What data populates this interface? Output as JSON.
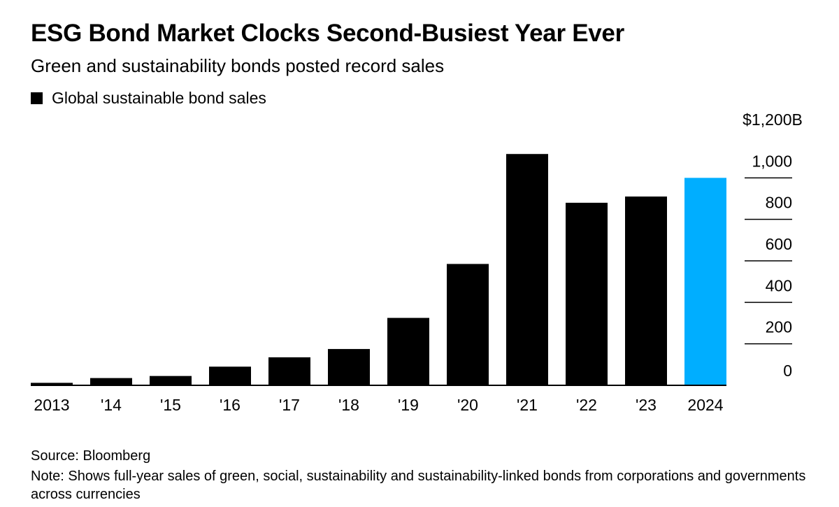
{
  "title": "ESG Bond Market Clocks Second-Busiest Year Ever",
  "subtitle": "Green and sustainability bonds posted record sales",
  "legend": {
    "label": "Global sustainable bond sales",
    "color": "#000000"
  },
  "footer": {
    "source": "Source: Bloomberg",
    "note": "Note: Shows full-year sales of green, social, sustainability and sustainability-linked bonds from corporations and governments across currencies"
  },
  "chart_data": {
    "type": "bar",
    "categories": [
      "2013",
      "'14",
      "'15",
      "'16",
      "'17",
      "'18",
      "'19",
      "'20",
      "'21",
      "'22",
      "'23",
      "2024"
    ],
    "series": [
      {
        "name": "Global sustainable bond sales",
        "values": [
          12,
          35,
          45,
          90,
          135,
          175,
          325,
          585,
          1115,
          880,
          910,
          1000
        ]
      }
    ],
    "highlight_index": 11,
    "bar_color": "#000000",
    "highlight_color": "#00aeff",
    "ylim": [
      0,
      1200
    ],
    "yticks": [
      0,
      200,
      400,
      600,
      800,
      1000,
      1200
    ],
    "ytick_labels": [
      "0",
      "200",
      "400",
      "600",
      "800",
      "1,000",
      "$1,200B"
    ],
    "y_axis_position": "right",
    "grid": false,
    "legend_position": "top-left"
  }
}
